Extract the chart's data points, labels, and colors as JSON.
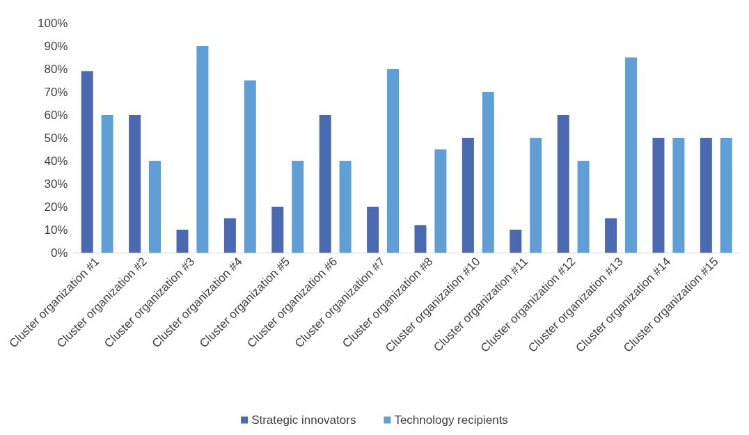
{
  "chart_data": {
    "type": "bar",
    "categories": [
      "Cluster organization #1",
      "Cluster organization #2",
      "Cluster organization #3",
      "Cluster organization #4",
      "Cluster organization #5",
      "Cluster organization #6",
      "Cluster organization #7",
      "Cluster organization #8",
      "Cluster organization #10",
      "Cluster organization #11",
      "Cluster organization #12",
      "Cluster organization #13",
      "Cluster organization #14",
      "Cluster organization #15"
    ],
    "series": [
      {
        "name": "Strategic innovators",
        "color": "#4a69b0",
        "values": [
          79,
          60,
          10,
          15,
          20,
          60,
          20,
          12,
          50,
          10,
          60,
          15,
          50,
          50
        ]
      },
      {
        "name": "Technology recipients",
        "color": "#5f9fd6",
        "values": [
          60,
          40,
          90,
          75,
          40,
          40,
          80,
          45,
          70,
          50,
          40,
          85,
          50,
          50
        ]
      }
    ],
    "ylim": [
      0,
      100
    ],
    "yticks": [
      {
        "value": 0,
        "label": "0%"
      },
      {
        "value": 10,
        "label": "10%"
      },
      {
        "value": 20,
        "label": "20%"
      },
      {
        "value": 30,
        "label": "30%"
      },
      {
        "value": 40,
        "label": "40%"
      },
      {
        "value": 50,
        "label": "50%"
      },
      {
        "value": 60,
        "label": "60%"
      },
      {
        "value": 70,
        "label": "70%"
      },
      {
        "value": 80,
        "label": "80%"
      },
      {
        "value": 90,
        "label": "90%"
      },
      {
        "value": 100,
        "label": "100%"
      }
    ],
    "grid": false,
    "legend": "bottom"
  }
}
